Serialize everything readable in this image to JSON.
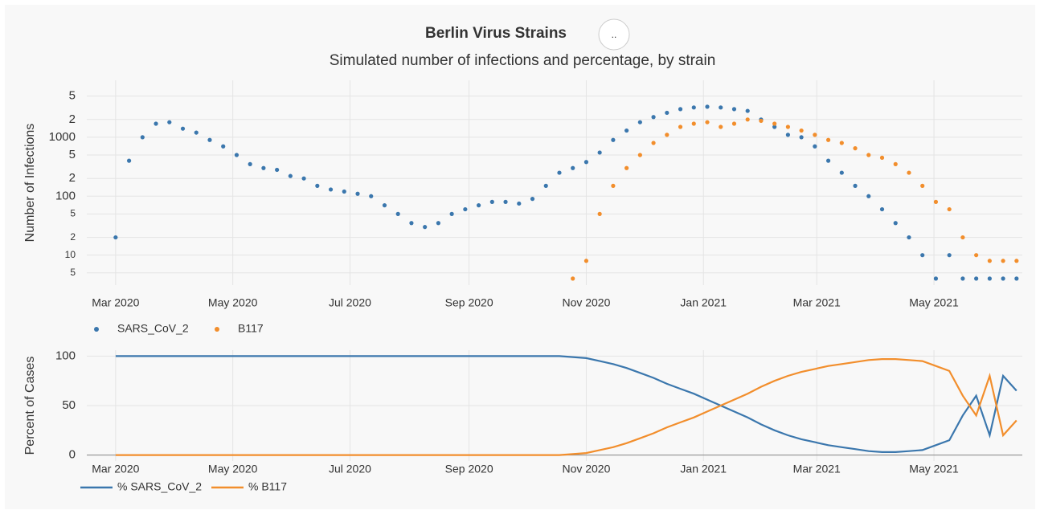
{
  "title": "Berlin Virus Strains",
  "subtitle": "Simulated number of infections and percentage, by strain",
  "button": "..",
  "chart_data": [
    {
      "type": "scatter",
      "y_label": "Number of Infections",
      "log_y": true,
      "grid": true,
      "legend": "bottom-left",
      "xlim": [
        -15,
        472
      ],
      "ylim": [
        3.1,
        9250
      ],
      "xticks": [
        {
          "value": 0,
          "label": "Mar 2020"
        },
        {
          "value": 61,
          "label": "May 2020"
        },
        {
          "value": 122,
          "label": "Jul 2020"
        },
        {
          "value": 184,
          "label": "Sep 2020"
        },
        {
          "value": 245,
          "label": "Nov 2020"
        },
        {
          "value": 306,
          "label": "Jan 2021"
        },
        {
          "value": 365,
          "label": "Mar 2021"
        },
        {
          "value": 426,
          "label": "May 2021"
        }
      ],
      "yticks": [
        5,
        10,
        {
          "value": 20,
          "label": "2"
        },
        {
          "value": 50,
          "label": "5"
        },
        100,
        {
          "value": 200,
          "label": "2"
        },
        {
          "value": 500,
          "label": "5"
        },
        1000,
        {
          "value": 2000,
          "label": "2"
        },
        {
          "value": 5000,
          "label": "5"
        }
      ],
      "x": [
        0,
        7,
        14,
        21,
        28,
        35,
        42,
        49,
        56,
        63,
        70,
        77,
        84,
        91,
        98,
        105,
        112,
        119,
        126,
        133,
        140,
        147,
        154,
        161,
        168,
        175,
        182,
        189,
        196,
        203,
        210,
        217,
        224,
        231,
        238,
        245,
        252,
        259,
        266,
        273,
        280,
        287,
        294,
        301,
        308,
        315,
        322,
        329,
        336,
        343,
        350,
        357,
        364,
        371,
        378,
        385,
        392,
        399,
        406,
        413,
        420,
        427,
        434,
        441,
        448,
        455,
        462,
        469
      ],
      "series": [
        {
          "name": "SARS_CoV_2",
          "color": "#3b77ad",
          "values": [
            20,
            400,
            1000,
            1700,
            1800,
            1400,
            1200,
            900,
            700,
            500,
            350,
            300,
            280,
            220,
            200,
            150,
            130,
            120,
            110,
            100,
            70,
            50,
            35,
            30,
            35,
            50,
            60,
            70,
            80,
            80,
            75,
            90,
            150,
            250,
            300,
            380,
            550,
            900,
            1300,
            1800,
            2200,
            2600,
            3000,
            3200,
            3300,
            3200,
            3000,
            2800,
            2000,
            1500,
            1100,
            1000,
            700,
            400,
            250,
            150,
            100,
            60,
            35,
            20,
            10,
            4,
            10,
            4,
            4,
            4,
            4,
            4
          ]
        },
        {
          "name": "B117",
          "color": "#f28e2c",
          "values": [
            null,
            null,
            null,
            null,
            null,
            null,
            null,
            null,
            null,
            null,
            null,
            null,
            null,
            null,
            null,
            null,
            null,
            null,
            null,
            null,
            null,
            null,
            null,
            null,
            null,
            null,
            null,
            null,
            null,
            null,
            null,
            null,
            null,
            null,
            4,
            8,
            50,
            150,
            300,
            500,
            800,
            1100,
            1500,
            1700,
            1800,
            1500,
            1700,
            2000,
            1900,
            1700,
            1500,
            1300,
            1100,
            900,
            800,
            650,
            500,
            450,
            350,
            250,
            150,
            80,
            60,
            20,
            10,
            8,
            8,
            8
          ]
        }
      ]
    },
    {
      "type": "line",
      "y_label": "Percent of Cases",
      "grid": true,
      "legend": "bottom-left",
      "xlim": [
        -15,
        472
      ],
      "ylim": [
        -6,
        106
      ],
      "xticks": [
        {
          "value": 0,
          "label": "Mar 2020"
        },
        {
          "value": 61,
          "label": "May 2020"
        },
        {
          "value": 122,
          "label": "Jul 2020"
        },
        {
          "value": 184,
          "label": "Sep 2020"
        },
        {
          "value": 245,
          "label": "Nov 2020"
        },
        {
          "value": 306,
          "label": "Jan 2021"
        },
        {
          "value": 365,
          "label": "Mar 2021"
        },
        {
          "value": 426,
          "label": "May 2021"
        }
      ],
      "yticks": [
        0,
        50,
        100
      ],
      "x": [
        0,
        7,
        14,
        21,
        28,
        35,
        42,
        49,
        56,
        63,
        70,
        77,
        84,
        91,
        98,
        105,
        112,
        119,
        126,
        133,
        140,
        147,
        154,
        161,
        168,
        175,
        182,
        189,
        196,
        203,
        210,
        217,
        224,
        231,
        238,
        245,
        252,
        259,
        266,
        273,
        280,
        287,
        294,
        301,
        308,
        315,
        322,
        329,
        336,
        343,
        350,
        357,
        364,
        371,
        378,
        385,
        392,
        399,
        406,
        413,
        420,
        427,
        434,
        441,
        448,
        455,
        462,
        469
      ],
      "series": [
        {
          "name": "% SARS_CoV_2",
          "color": "#3b77ad",
          "values": [
            100,
            100,
            100,
            100,
            100,
            100,
            100,
            100,
            100,
            100,
            100,
            100,
            100,
            100,
            100,
            100,
            100,
            100,
            100,
            100,
            100,
            100,
            100,
            100,
            100,
            100,
            100,
            100,
            100,
            100,
            100,
            100,
            100,
            100,
            99,
            98,
            95,
            92,
            88,
            83,
            78,
            72,
            67,
            62,
            56,
            50,
            44,
            38,
            31,
            25,
            20,
            16,
            13,
            10,
            8,
            6,
            4,
            3,
            3,
            4,
            5,
            10,
            15,
            40,
            60,
            20,
            80,
            65
          ]
        },
        {
          "name": "% B117",
          "color": "#f28e2c",
          "values": [
            0,
            0,
            0,
            0,
            0,
            0,
            0,
            0,
            0,
            0,
            0,
            0,
            0,
            0,
            0,
            0,
            0,
            0,
            0,
            0,
            0,
            0,
            0,
            0,
            0,
            0,
            0,
            0,
            0,
            0,
            0,
            0,
            0,
            0,
            1,
            2,
            5,
            8,
            12,
            17,
            22,
            28,
            33,
            38,
            44,
            50,
            56,
            62,
            69,
            75,
            80,
            84,
            87,
            90,
            92,
            94,
            96,
            97,
            97,
            96,
            95,
            90,
            85,
            60,
            40,
            80,
            20,
            35
          ]
        }
      ]
    }
  ]
}
